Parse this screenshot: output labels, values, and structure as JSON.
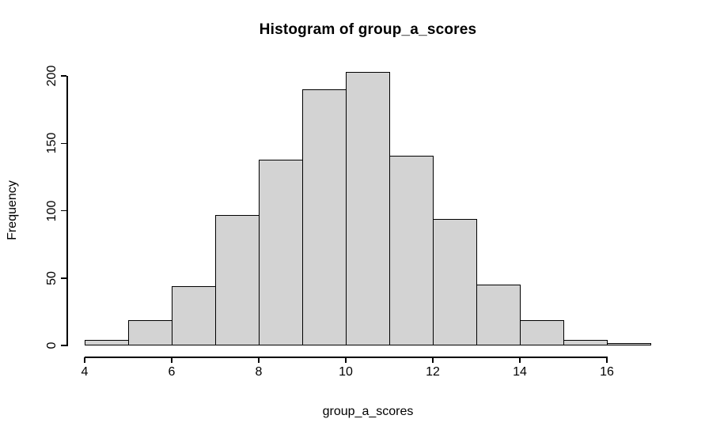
{
  "title": "Histogram of group_a_scores",
  "chart_data": {
    "type": "bar",
    "subtype": "histogram",
    "title": "Histogram of group_a_scores",
    "xlabel": "group_a_scores",
    "ylabel": "Frequency",
    "bin_edges": [
      4,
      5,
      6,
      7,
      8,
      9,
      10,
      11,
      12,
      13,
      14,
      15,
      16,
      17
    ],
    "values": [
      4,
      19,
      44,
      97,
      138,
      190,
      203,
      141,
      94,
      45,
      19,
      4,
      2
    ],
    "total_count": 1000,
    "x_ticks": [
      4,
      6,
      8,
      10,
      12,
      14,
      16
    ],
    "y_ticks": [
      0,
      50,
      100,
      150,
      200
    ],
    "xlim": [
      4,
      17
    ],
    "ylim": [
      0,
      203
    ],
    "grid": false,
    "legend": "none",
    "bar_fill": "#d3d3d3",
    "bar_border": "#000000",
    "background": "#ffffff",
    "text_color": "#000000"
  }
}
